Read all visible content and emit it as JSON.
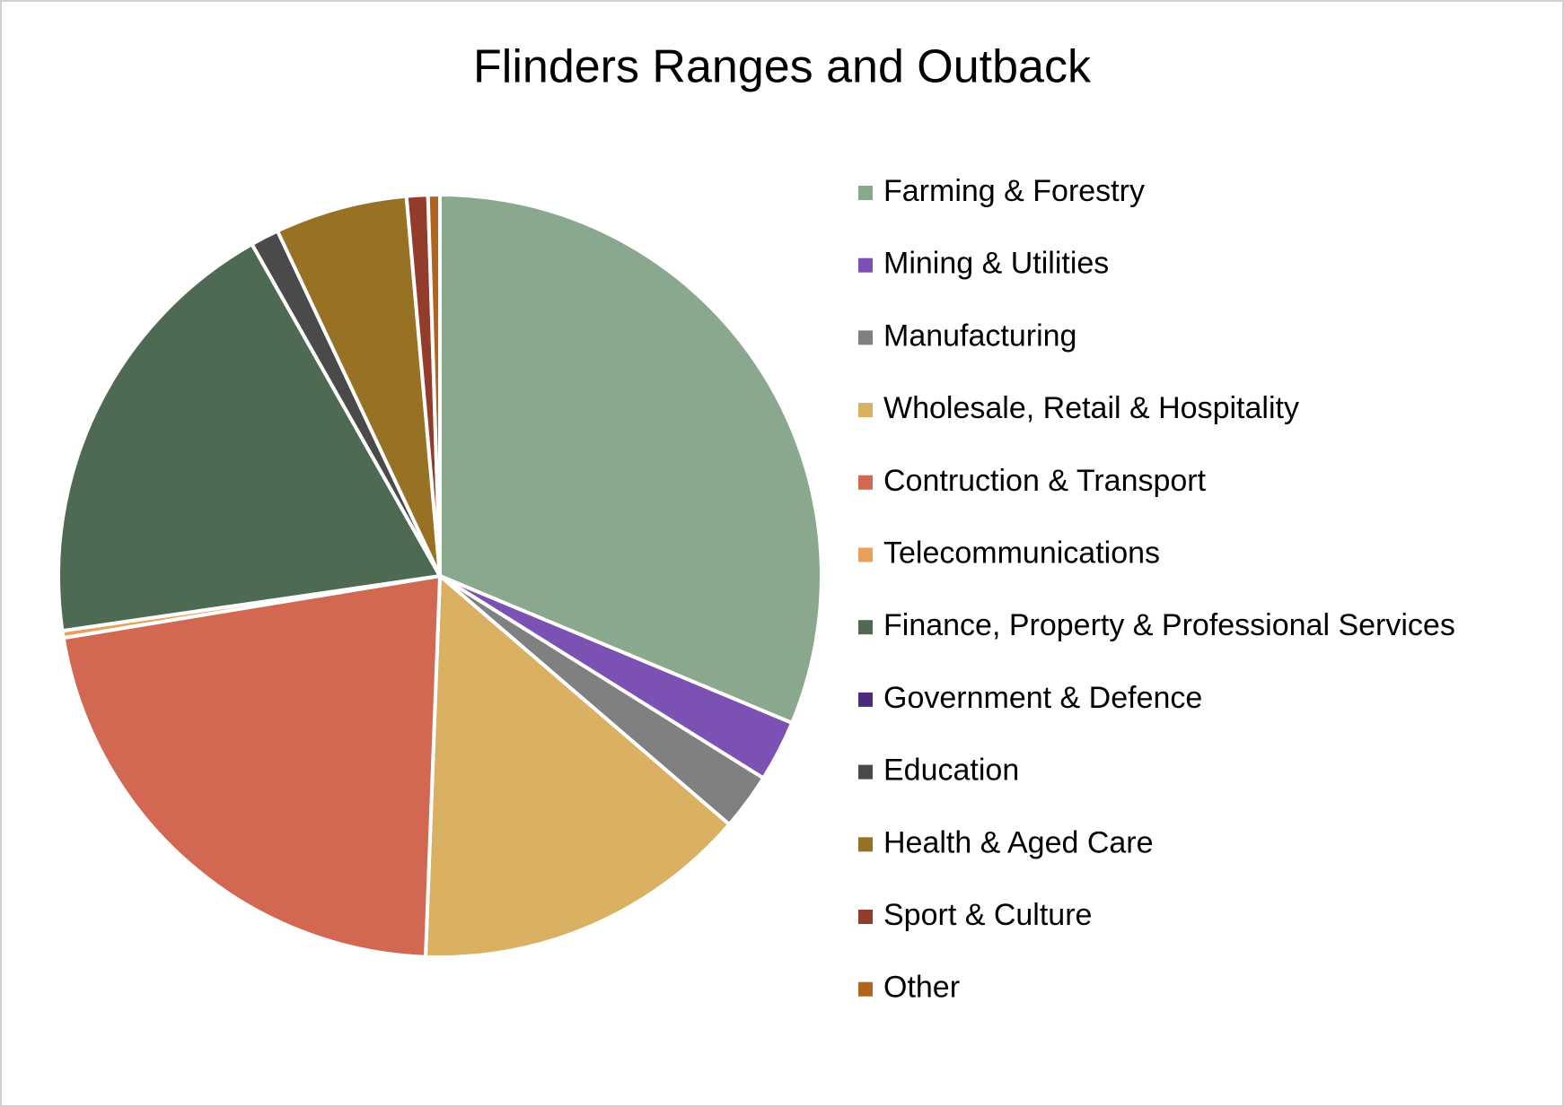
{
  "chart_data": {
    "type": "pie",
    "title": "Flinders Ranges and Outback",
    "categories": [
      "Farming & Forestry",
      "Mining & Utilities",
      "Manufacturing",
      "Wholesale, Retail & Hospitality",
      "Contruction & Transport",
      "Telecommunications",
      "Finance, Property & Professional Services",
      "Government & Defence",
      "Education",
      "Health & Aged Care",
      "Sport & Culture",
      "Other"
    ],
    "values": [
      31.3,
      2.6,
      2.4,
      14.3,
      21.8,
      0.3,
      19.1,
      0,
      1.2,
      5.6,
      0.9,
      0.5
    ],
    "colors": [
      "#8aa88e",
      "#7b52b4",
      "#808080",
      "#dab162",
      "#d26752",
      "#e8a15a",
      "#4f6a52",
      "#4b2a7a",
      "#4a4a4a",
      "#977124",
      "#943c2c",
      "#b0641e"
    ],
    "legend": "right"
  }
}
